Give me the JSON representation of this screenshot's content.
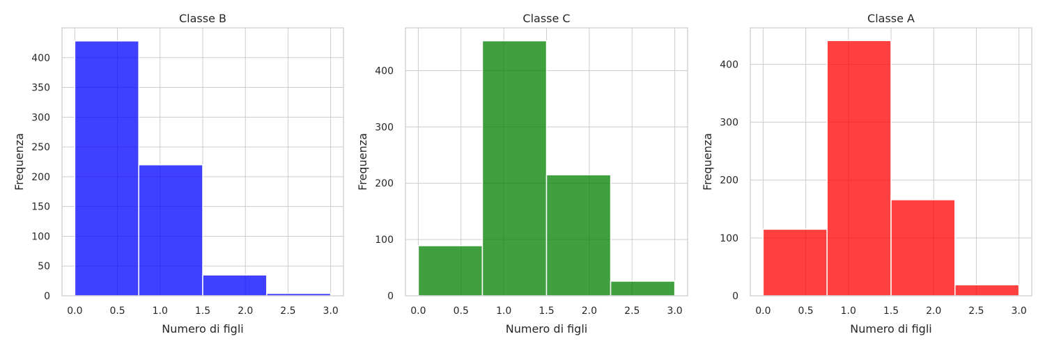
{
  "chart_data": [
    {
      "type": "bar",
      "title": "Classe B",
      "xlabel": "Numero di figli",
      "ylabel": "Frequenza",
      "color": "#0000ff",
      "bin_edges": [
        0.0,
        0.75,
        1.5,
        2.25,
        3.0
      ],
      "values": [
        428,
        220,
        35,
        4
      ],
      "xlim": [
        -0.15,
        3.15
      ],
      "ylim": [
        0,
        450
      ],
      "xticks": [
        "0.0",
        "0.5",
        "1.0",
        "1.5",
        "2.0",
        "2.5",
        "3.0"
      ],
      "yticks": [
        "0",
        "50",
        "100",
        "150",
        "200",
        "250",
        "300",
        "350",
        "400"
      ],
      "grid": true
    },
    {
      "type": "bar",
      "title": "Classe C",
      "xlabel": "Numero di figli",
      "ylabel": "Frequenza",
      "color": "#008000",
      "bin_edges": [
        0.0,
        0.75,
        1.5,
        2.25,
        3.0
      ],
      "values": [
        89,
        453,
        215,
        26
      ],
      "xlim": [
        -0.15,
        3.15
      ],
      "ylim": [
        0,
        476
      ],
      "xticks": [
        "0.0",
        "0.5",
        "1.0",
        "1.5",
        "2.0",
        "2.5",
        "3.0"
      ],
      "yticks": [
        "0",
        "100",
        "200",
        "300",
        "400"
      ],
      "grid": true
    },
    {
      "type": "bar",
      "title": "Classe A",
      "xlabel": "Numero di figli",
      "ylabel": "Frequenza",
      "color": "#ff0000",
      "bin_edges": [
        0.0,
        0.75,
        1.5,
        2.25,
        3.0
      ],
      "values": [
        115,
        441,
        166,
        19
      ],
      "xlim": [
        -0.15,
        3.15
      ],
      "ylim": [
        0,
        463
      ],
      "xticks": [
        "0.0",
        "0.5",
        "1.0",
        "1.5",
        "2.0",
        "2.5",
        "3.0"
      ],
      "yticks": [
        "0",
        "100",
        "200",
        "300",
        "400"
      ],
      "grid": true
    }
  ]
}
